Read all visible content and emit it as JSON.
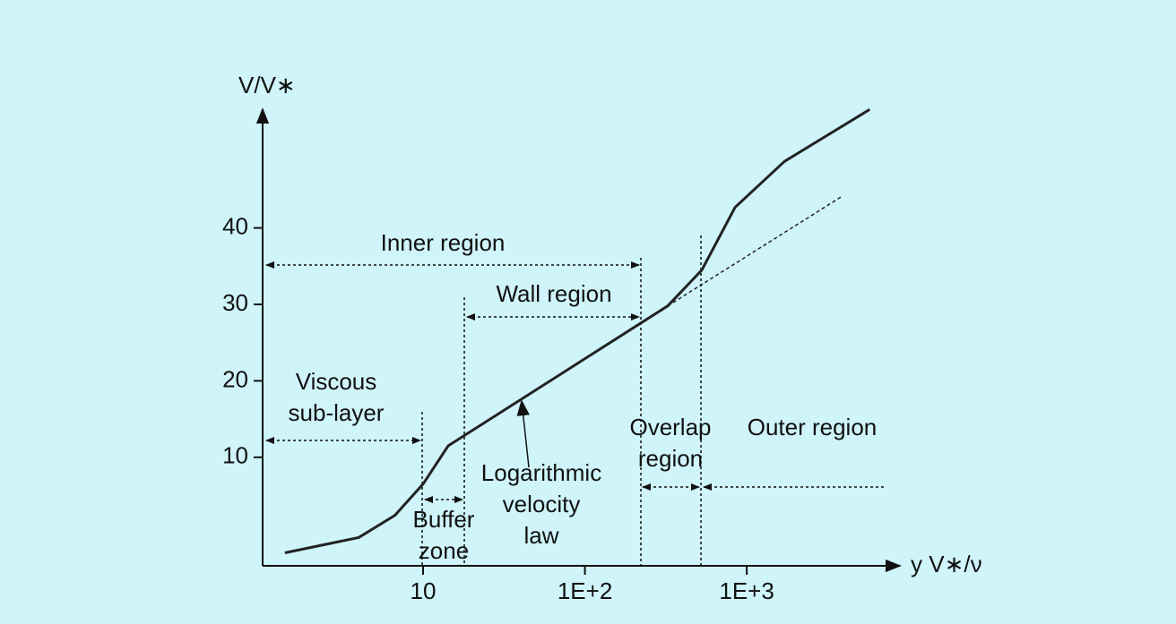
{
  "chart_data": {
    "type": "line",
    "y_label": "V/V∗",
    "x_label": "y V∗/ν",
    "xscale": "log",
    "xlim": [
      1.02,
      8400
    ],
    "ylim": [
      -4.2,
      56
    ],
    "xticks": [
      10,
      {
        "value": 100,
        "label": "1E+2"
      },
      {
        "value": 1000,
        "label": "1E+3"
      }
    ],
    "yticks": [
      10,
      20,
      30,
      40
    ],
    "series": [
      {
        "color": "#222222",
        "style": "solid",
        "x": [
          1.4,
          4.0,
          6.7,
          10,
          14.3,
          325,
          528,
          847,
          1710,
          5750
        ],
        "values": [
          -2.5,
          -0.5,
          2.4,
          6.5,
          11.5,
          29.8,
          34.5,
          42.7,
          48.7,
          55.5
        ]
      },
      {
        "color": "#222222",
        "style": "dashed",
        "x": [
          325,
          3920
        ],
        "values": [
          29.8,
          44.2
        ]
      }
    ],
    "annotations": [
      [
        "Inner region"
      ],
      [
        "Wall region"
      ],
      [
        "Viscous",
        "sub-layer"
      ],
      [
        "Buffer",
        "zone"
      ],
      [
        "Logarithmic",
        "velocity",
        "law"
      ],
      [
        "Overlap",
        "region"
      ],
      [
        "Outer region"
      ]
    ]
  }
}
